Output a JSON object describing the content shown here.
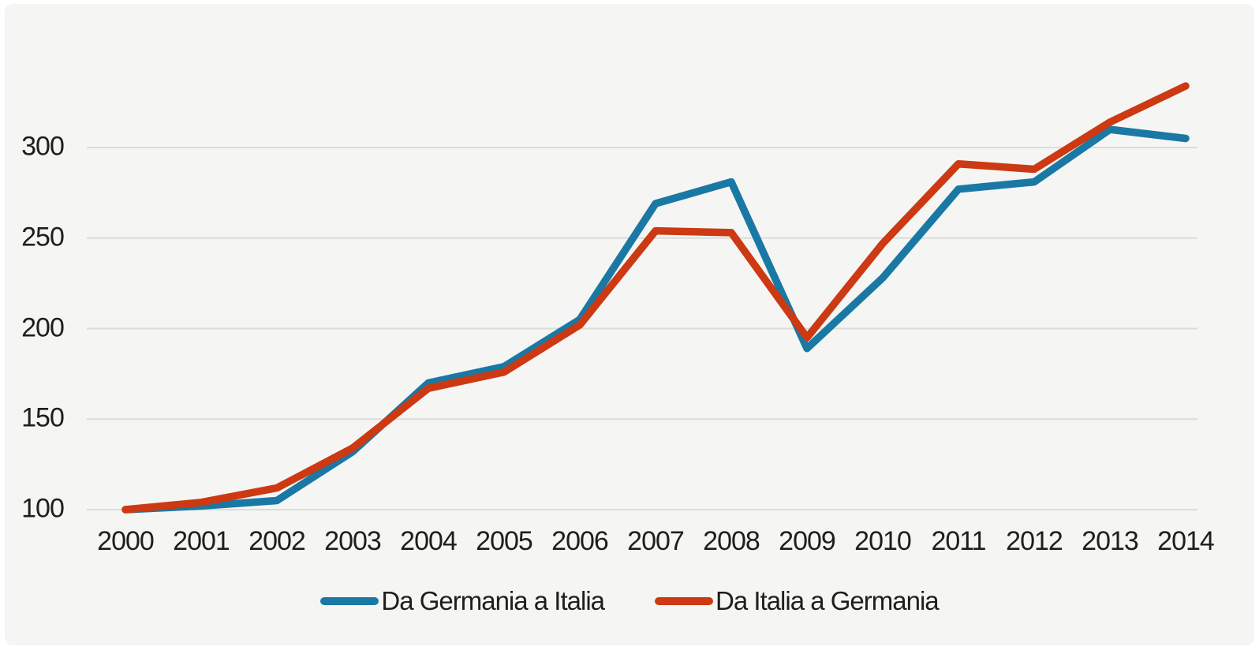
{
  "canvas": {
    "panel_background": "#f5f5f3",
    "gridline_color": "#dcdcda",
    "text_color": "#1e1e1c"
  },
  "chart_data": {
    "type": "line",
    "title": "",
    "xlabel": "",
    "ylabel": "",
    "x": [
      "2000",
      "2001",
      "2002",
      "2003",
      "2004",
      "2005",
      "2006",
      "2007",
      "2008",
      "2009",
      "2010",
      "2011",
      "2012",
      "2013",
      "2014"
    ],
    "yticks": [
      100,
      150,
      200,
      250,
      300
    ],
    "ylim": [
      100,
      340
    ],
    "grid": true,
    "legend_position": "bottom-center",
    "series": [
      {
        "name": "Da Germania a Italia",
        "color": "#1a78a4",
        "values": [
          100,
          102,
          105,
          132,
          170,
          179,
          205,
          269,
          281,
          189,
          228,
          277,
          281,
          310,
          305
        ]
      },
      {
        "name": "Da Italia a Germania",
        "color": "#cc3912",
        "values": [
          100,
          104,
          112,
          134,
          167,
          176,
          202,
          254,
          253,
          195,
          247,
          291,
          288,
          314,
          334
        ]
      }
    ]
  }
}
